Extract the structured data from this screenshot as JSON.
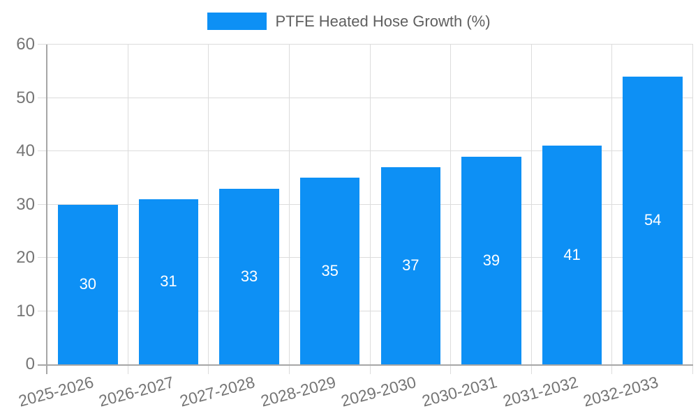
{
  "chart_data": {
    "type": "bar",
    "title": "",
    "series_name": "PTFE Heated Hose Growth (%)",
    "categories": [
      "2025-2026",
      "2026-2027",
      "2027-2028",
      "2028-2029",
      "2029-2030",
      "2030-2031",
      "2031-2032",
      "2032-2033"
    ],
    "values": [
      30,
      31,
      33,
      35,
      37,
      39,
      41,
      54
    ],
    "xlabel": "",
    "ylabel": "",
    "ylim": [
      0,
      60
    ],
    "yticks": [
      0,
      10,
      20,
      30,
      40,
      50,
      60
    ],
    "grid": true,
    "legend_position": "top",
    "data_labels_shown": true
  },
  "style": {
    "bar_color": "#0d90f5",
    "data_label_color": "#ffffff",
    "axis_color": "#a6a6a6",
    "grid_color": "#dcdcdc",
    "tick_label_color": "#757575",
    "legend_text_color": "#5f5f5f",
    "background": "#ffffff"
  }
}
